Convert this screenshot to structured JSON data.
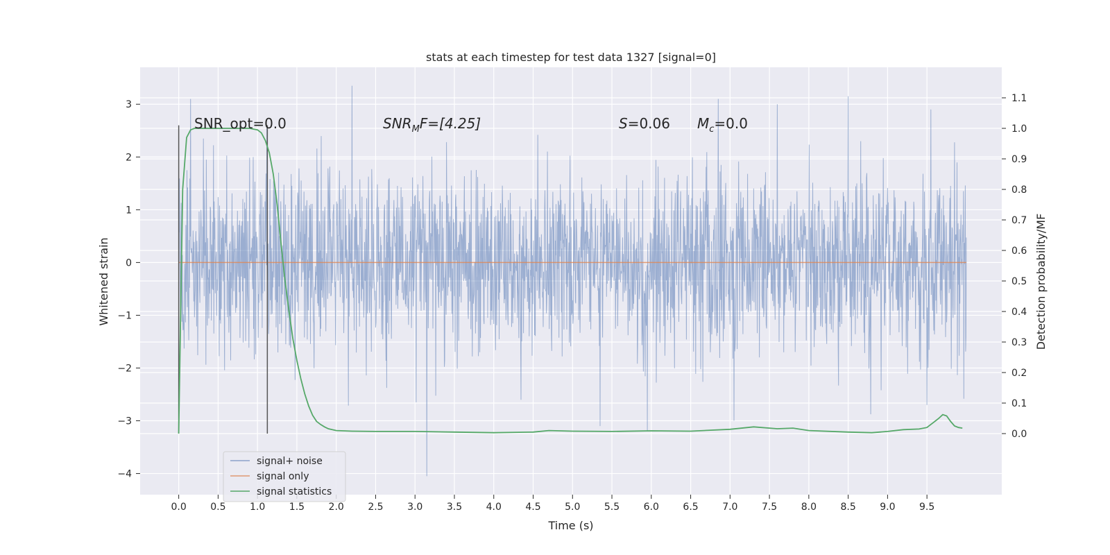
{
  "chart_data": {
    "type": "line",
    "title": "stats at each timestep for test data 1327 [signal=0]",
    "xlabel": "Time (s)",
    "ylabel": "Whitened strain",
    "y2label": "Detection probability/MF",
    "xlim": [
      -0.49,
      10.45
    ],
    "ylim": [
      -4.4,
      3.7
    ],
    "y2lim": [
      -0.2,
      1.2
    ],
    "x_ticks": [
      "0.0",
      "0.5",
      "1.0",
      "1.5",
      "2.0",
      "2.5",
      "3.0",
      "3.5",
      "4.0",
      "4.5",
      "5.0",
      "5.5",
      "6.0",
      "6.5",
      "7.0",
      "7.5",
      "8.0",
      "8.5",
      "9.0",
      "9.5"
    ],
    "y_ticks": [
      "3",
      "2",
      "1",
      "0",
      "−1",
      "−2",
      "−3",
      "−4"
    ],
    "y2_ticks": [
      "1.1",
      "1.0",
      "0.9",
      "0.8",
      "0.7",
      "0.6",
      "0.5",
      "0.4",
      "0.3",
      "0.2",
      "0.1",
      "0.0"
    ],
    "legend_position": "lower-left",
    "grid": true,
    "background": "#eaeaf2",
    "annotations": {
      "snr_opt": "SNR_opt=0.0",
      "snr_mf_var": "SNR",
      "snr_mf_sub": "M",
      "snr_mf_rest": "F=[4.25]",
      "s_var": "S",
      "s_rest": "=0.06",
      "mc_var": "M",
      "mc_sub": "c",
      "mc_rest": "=0.0"
    },
    "vertical_lines_x": [
      0.0,
      1.125
    ],
    "series": [
      {
        "name": "signal+ noise",
        "color": "#4c72b0",
        "axis": "left",
        "x_range": [
          0.0,
          10.0
        ],
        "typical_amplitude": 1.4,
        "y_min": -4.05,
        "y_max": 3.36,
        "spikes": [
          [
            0.15,
            3.1
          ],
          [
            1.12,
            2.6
          ],
          [
            2.2,
            3.35
          ],
          [
            3.15,
            -4.05
          ],
          [
            5.35,
            -3.1
          ],
          [
            5.95,
            -3.2
          ],
          [
            6.85,
            3.1
          ],
          [
            7.05,
            -3.0
          ],
          [
            7.6,
            3.0
          ],
          [
            8.5,
            3.15
          ],
          [
            9.55,
            2.9
          ],
          [
            9.5,
            -2.7
          ]
        ]
      },
      {
        "name": "signal only",
        "color": "#dd8452",
        "axis": "left",
        "x": [
          0.0,
          10.0
        ],
        "y": [
          0.0,
          0.0
        ]
      },
      {
        "name": "signal statistics",
        "color": "#55a868",
        "axis": "right",
        "x": [
          0.0,
          0.05,
          0.1,
          0.15,
          0.2,
          0.3,
          0.5,
          0.7,
          0.9,
          1.0,
          1.05,
          1.1,
          1.15,
          1.2,
          1.25,
          1.3,
          1.35,
          1.4,
          1.45,
          1.5,
          1.55,
          1.6,
          1.65,
          1.7,
          1.75,
          1.8,
          1.85,
          1.9,
          2.0,
          2.2,
          2.5,
          3.0,
          3.5,
          4.0,
          4.5,
          4.7,
          5.0,
          5.5,
          6.0,
          6.5,
          7.0,
          7.3,
          7.6,
          7.8,
          8.0,
          8.5,
          8.8,
          9.0,
          9.2,
          9.4,
          9.5,
          9.6,
          9.65,
          9.7,
          9.75,
          9.8,
          9.85,
          9.9,
          9.95
        ],
        "y": [
          0.0,
          0.8,
          0.97,
          0.995,
          1.0,
          1.0,
          1.0,
          1.0,
          1.0,
          0.995,
          0.985,
          0.96,
          0.92,
          0.85,
          0.75,
          0.62,
          0.5,
          0.4,
          0.31,
          0.24,
          0.18,
          0.13,
          0.09,
          0.06,
          0.04,
          0.03,
          0.022,
          0.016,
          0.01,
          0.008,
          0.007,
          0.007,
          0.005,
          0.003,
          0.005,
          0.01,
          0.008,
          0.007,
          0.009,
          0.008,
          0.014,
          0.022,
          0.016,
          0.018,
          0.01,
          0.005,
          0.003,
          0.007,
          0.013,
          0.015,
          0.02,
          0.04,
          0.05,
          0.062,
          0.058,
          0.04,
          0.025,
          0.02,
          0.018
        ]
      }
    ]
  }
}
